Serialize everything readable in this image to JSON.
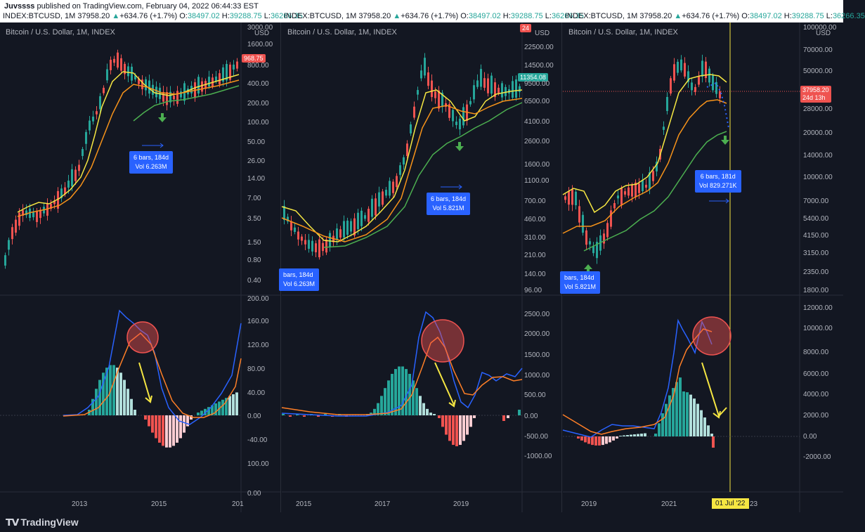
{
  "header": {
    "publisher": "Juvssss",
    "published_text": "published on TradingView.com, February 04, 2022 06:44:33 EST"
  },
  "ohlc": {
    "symbol": "INDEX:BTCUSD, 1M",
    "last": "37958.20",
    "change": "+634.76 (+1.7%)",
    "o_label": "O:",
    "o": "38497.02",
    "h_label": "H:",
    "h": "39288.75",
    "l_label": "L:",
    "l": "36266.35"
  },
  "panels": [
    {
      "title": "Bitcoin / U.S. Dollar, 1M, INDEX",
      "price_axis": [
        "3000.00",
        "1600.00",
        "800.00",
        "400.00",
        "200.00",
        "100.00",
        "50.00",
        "26.00",
        "14.00",
        "7.00",
        "3.50",
        "1.50",
        "0.80",
        "0.40"
      ],
      "currency": "USD",
      "price_label": "968.75",
      "macd_axis": [
        "200.00",
        "160.00",
        "120.00",
        "80.00",
        "40.00",
        "0.00",
        "-40.00",
        "100.00",
        "0.00"
      ],
      "time_axis": [
        "2013",
        "2015",
        "201"
      ],
      "measure": {
        "line1": "6 bars, 184d",
        "line2": "Vol 6.263M"
      }
    },
    {
      "title": "Bitcoin / U.S. Dollar, 1M, INDEX",
      "price_axis": [
        "22500.00",
        "14500.00",
        "9500.00",
        "6500.00",
        "4100.00",
        "2600.00",
        "1600.00",
        "1100.00",
        "700.00",
        "460.00",
        "310.00",
        "210.00",
        "140.00",
        "96.00"
      ],
      "currency": "USD",
      "price_label": "11354.08",
      "price_label_top": "24",
      "macd_axis": [
        "2500.00",
        "2000.00",
        "1500.00",
        "1000.00",
        "500.00",
        "0.00",
        "-500.00",
        "-1000.00"
      ],
      "time_axis": [
        "2015",
        "2017",
        "2019"
      ],
      "measure": {
        "line1": "6 bars, 184d",
        "line2": "Vol 5.821M"
      },
      "measure_left": {
        "line1": "bars, 184d",
        "line2": "Vol 6.263M"
      }
    },
    {
      "title": "Bitcoin / U.S. Dollar, 1M, INDEX",
      "price_axis": [
        "100000.00",
        "70000.00",
        "50000.00",
        "28000.00",
        "20000.00",
        "14000.00",
        "10000.00",
        "7000.00",
        "5400.00",
        "4150.00",
        "3150.00",
        "2350.00",
        "1800.00"
      ],
      "currency": "USD",
      "price_label": "37958.20",
      "price_sub": "24d 13h",
      "macd_axis": [
        "12000.00",
        "10000.00",
        "8000.00",
        "6000.00",
        "4000.00",
        "2000.00",
        "0.00",
        "-2000.00"
      ],
      "time_axis": [
        "2019",
        "2021",
        "23"
      ],
      "date_badge": "01 Jul '22",
      "measure": {
        "line1": "6 bars, 181d",
        "line2": "Vol 829.271K"
      },
      "measure_left": {
        "line1": "bars, 184d",
        "line2": "Vol 5.821M"
      }
    }
  ],
  "footer": {
    "brand": "TradingView",
    "logo_icon": "tradingview-logo-icon"
  },
  "colors": {
    "bg": "#131722",
    "up": "#26a69a",
    "down": "#ef5350",
    "macd": "#2962ff",
    "signal": "#ff7f27",
    "ma_fast": "#f5e642",
    "ma_mid": "#f7931a",
    "ma_slow": "#4caf50",
    "accent": "#2962ff",
    "highlight": "#f5e642"
  }
}
